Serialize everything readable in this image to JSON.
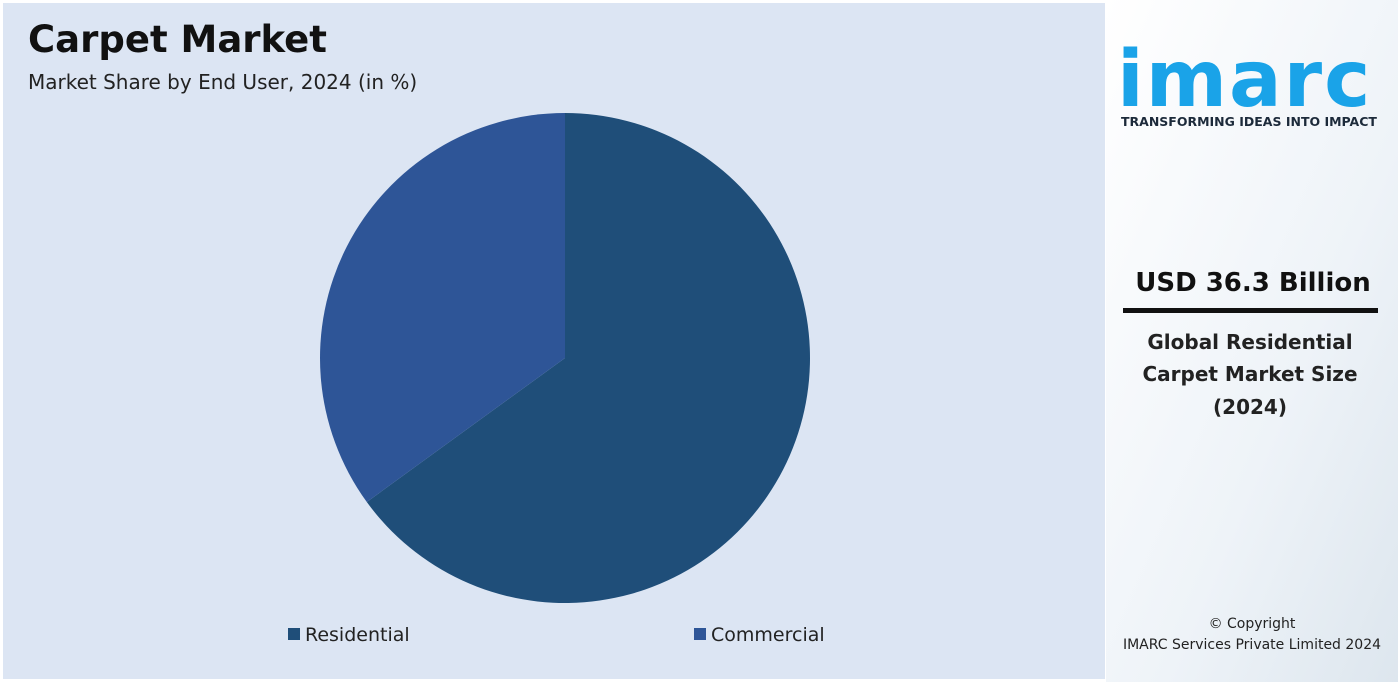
{
  "chart_data": {
    "type": "pie",
    "title": "Carpet Market",
    "subtitle": "Market Share by End User, 2024 (in %)",
    "categories": [
      "Residential",
      "Commercial"
    ],
    "values": [
      65,
      35
    ],
    "colors": [
      "#1f4e79",
      "#2e5597"
    ]
  },
  "panel": {
    "logo": "imarc",
    "tagline": "TRANSFORMING IDEAS INTO IMPACT",
    "headline": "USD 36.3 Billion",
    "description": [
      "Global Residential",
      "Carpet Market Size",
      "(2024)"
    ],
    "copyright": "© Copyright",
    "company": "IMARC Services Private Limited 2024"
  }
}
